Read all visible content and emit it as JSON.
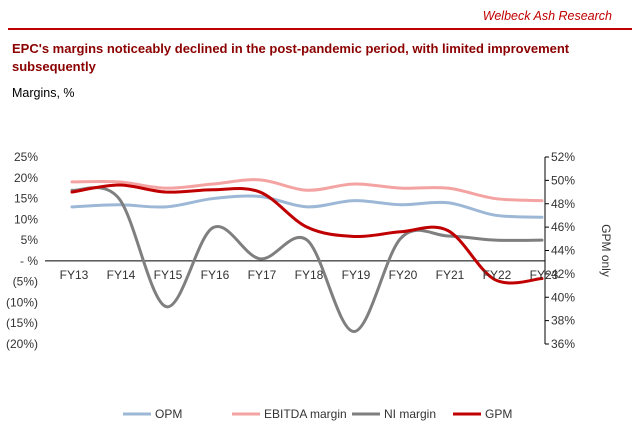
{
  "header": {
    "brand": "Welbeck Ash Research",
    "title": "EPC's margins noticeably declined in the post-pandemic period, with limited improvement subsequently",
    "subtitle": "Margins, %"
  },
  "chart_data": {
    "type": "line",
    "categories": [
      "FY13",
      "FY14",
      "FY15",
      "FY16",
      "FY17",
      "FY18",
      "FY19",
      "FY20",
      "FY21",
      "FY22",
      "FY23"
    ],
    "series": [
      {
        "name": "OPM",
        "axis": "left",
        "color": "#9db8d6",
        "values": [
          13,
          13.5,
          13,
          15,
          15.5,
          13,
          14.5,
          13.5,
          14,
          11,
          10.5
        ]
      },
      {
        "name": "EBITDA margin",
        "axis": "left",
        "color": "#f4a3a3",
        "values": [
          19,
          19,
          17.5,
          18.5,
          19.5,
          17,
          18.5,
          17.5,
          17.5,
          15,
          14.5
        ]
      },
      {
        "name": "NI margin",
        "axis": "left",
        "color": "#7f7f7f",
        "values": [
          17,
          15,
          -11,
          8,
          0.5,
          5,
          -17,
          5.5,
          6,
          5,
          5
        ]
      },
      {
        "name": "GPM",
        "axis": "right",
        "color": "#c00000",
        "values": [
          49,
          49.6,
          49,
          49.2,
          49,
          46,
          45.2,
          45.6,
          45.7,
          41.5,
          41.6
        ]
      }
    ],
    "left_axis": {
      "min": -20,
      "max": 25,
      "step": 5,
      "tick_labels": [
        "(20%)",
        "(15%)",
        "(10%)",
        "(5%)",
        "- %",
        "5%",
        "10%",
        "15%",
        "20%",
        "25%"
      ]
    },
    "right_axis": {
      "min": 36,
      "max": 52,
      "step": 2,
      "label": "GPM only",
      "tick_labels": [
        "36%",
        "38%",
        "40%",
        "42%",
        "44%",
        "46%",
        "48%",
        "50%",
        "52%"
      ]
    },
    "legend_position": "bottom",
    "grid": false
  }
}
